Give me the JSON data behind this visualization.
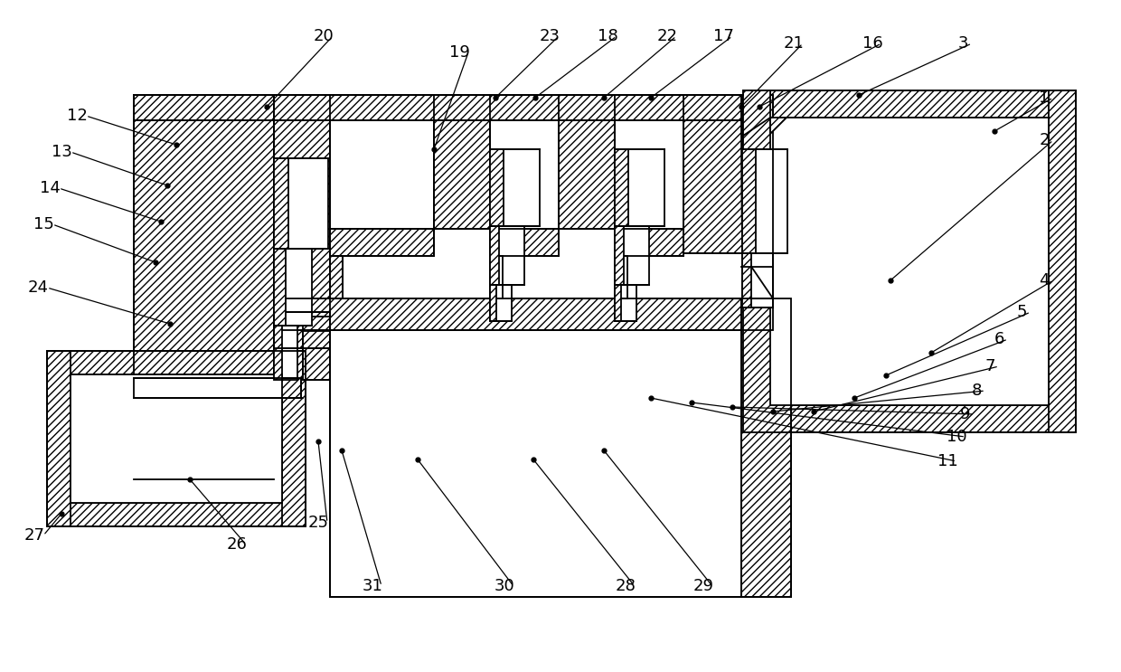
{
  "bg_color": "#ffffff",
  "lw": 1.3,
  "annotations": [
    [
      "1",
      1155,
      108,
      1100,
      145
    ],
    [
      "2",
      1155,
      155,
      985,
      310
    ],
    [
      "3",
      1065,
      48,
      950,
      105
    ],
    [
      "4",
      1155,
      310,
      1030,
      390
    ],
    [
      "5",
      1130,
      345,
      980,
      415
    ],
    [
      "6",
      1105,
      375,
      945,
      440
    ],
    [
      "7",
      1095,
      405,
      900,
      455
    ],
    [
      "8",
      1080,
      432,
      855,
      455
    ],
    [
      "9",
      1068,
      458,
      810,
      450
    ],
    [
      "10",
      1058,
      483,
      765,
      445
    ],
    [
      "11",
      1048,
      510,
      720,
      440
    ],
    [
      "12",
      85,
      128,
      195,
      160
    ],
    [
      "13",
      68,
      168,
      185,
      205
    ],
    [
      "14",
      55,
      208,
      178,
      245
    ],
    [
      "15",
      48,
      248,
      172,
      290
    ],
    [
      "16",
      965,
      48,
      840,
      118
    ],
    [
      "17",
      800,
      40,
      720,
      108
    ],
    [
      "18",
      672,
      40,
      592,
      108
    ],
    [
      "19",
      508,
      58,
      480,
      165
    ],
    [
      "20",
      358,
      40,
      295,
      118
    ],
    [
      "21",
      878,
      48,
      820,
      118
    ],
    [
      "22",
      738,
      40,
      668,
      108
    ],
    [
      "23",
      608,
      40,
      548,
      108
    ],
    [
      "24",
      42,
      318,
      188,
      358
    ],
    [
      "25",
      352,
      578,
      352,
      488
    ],
    [
      "26",
      262,
      602,
      210,
      530
    ],
    [
      "27",
      38,
      592,
      68,
      568
    ],
    [
      "28",
      692,
      648,
      590,
      508
    ],
    [
      "29",
      778,
      648,
      668,
      498
    ],
    [
      "30",
      558,
      648,
      462,
      508
    ],
    [
      "31",
      412,
      648,
      378,
      498
    ]
  ]
}
